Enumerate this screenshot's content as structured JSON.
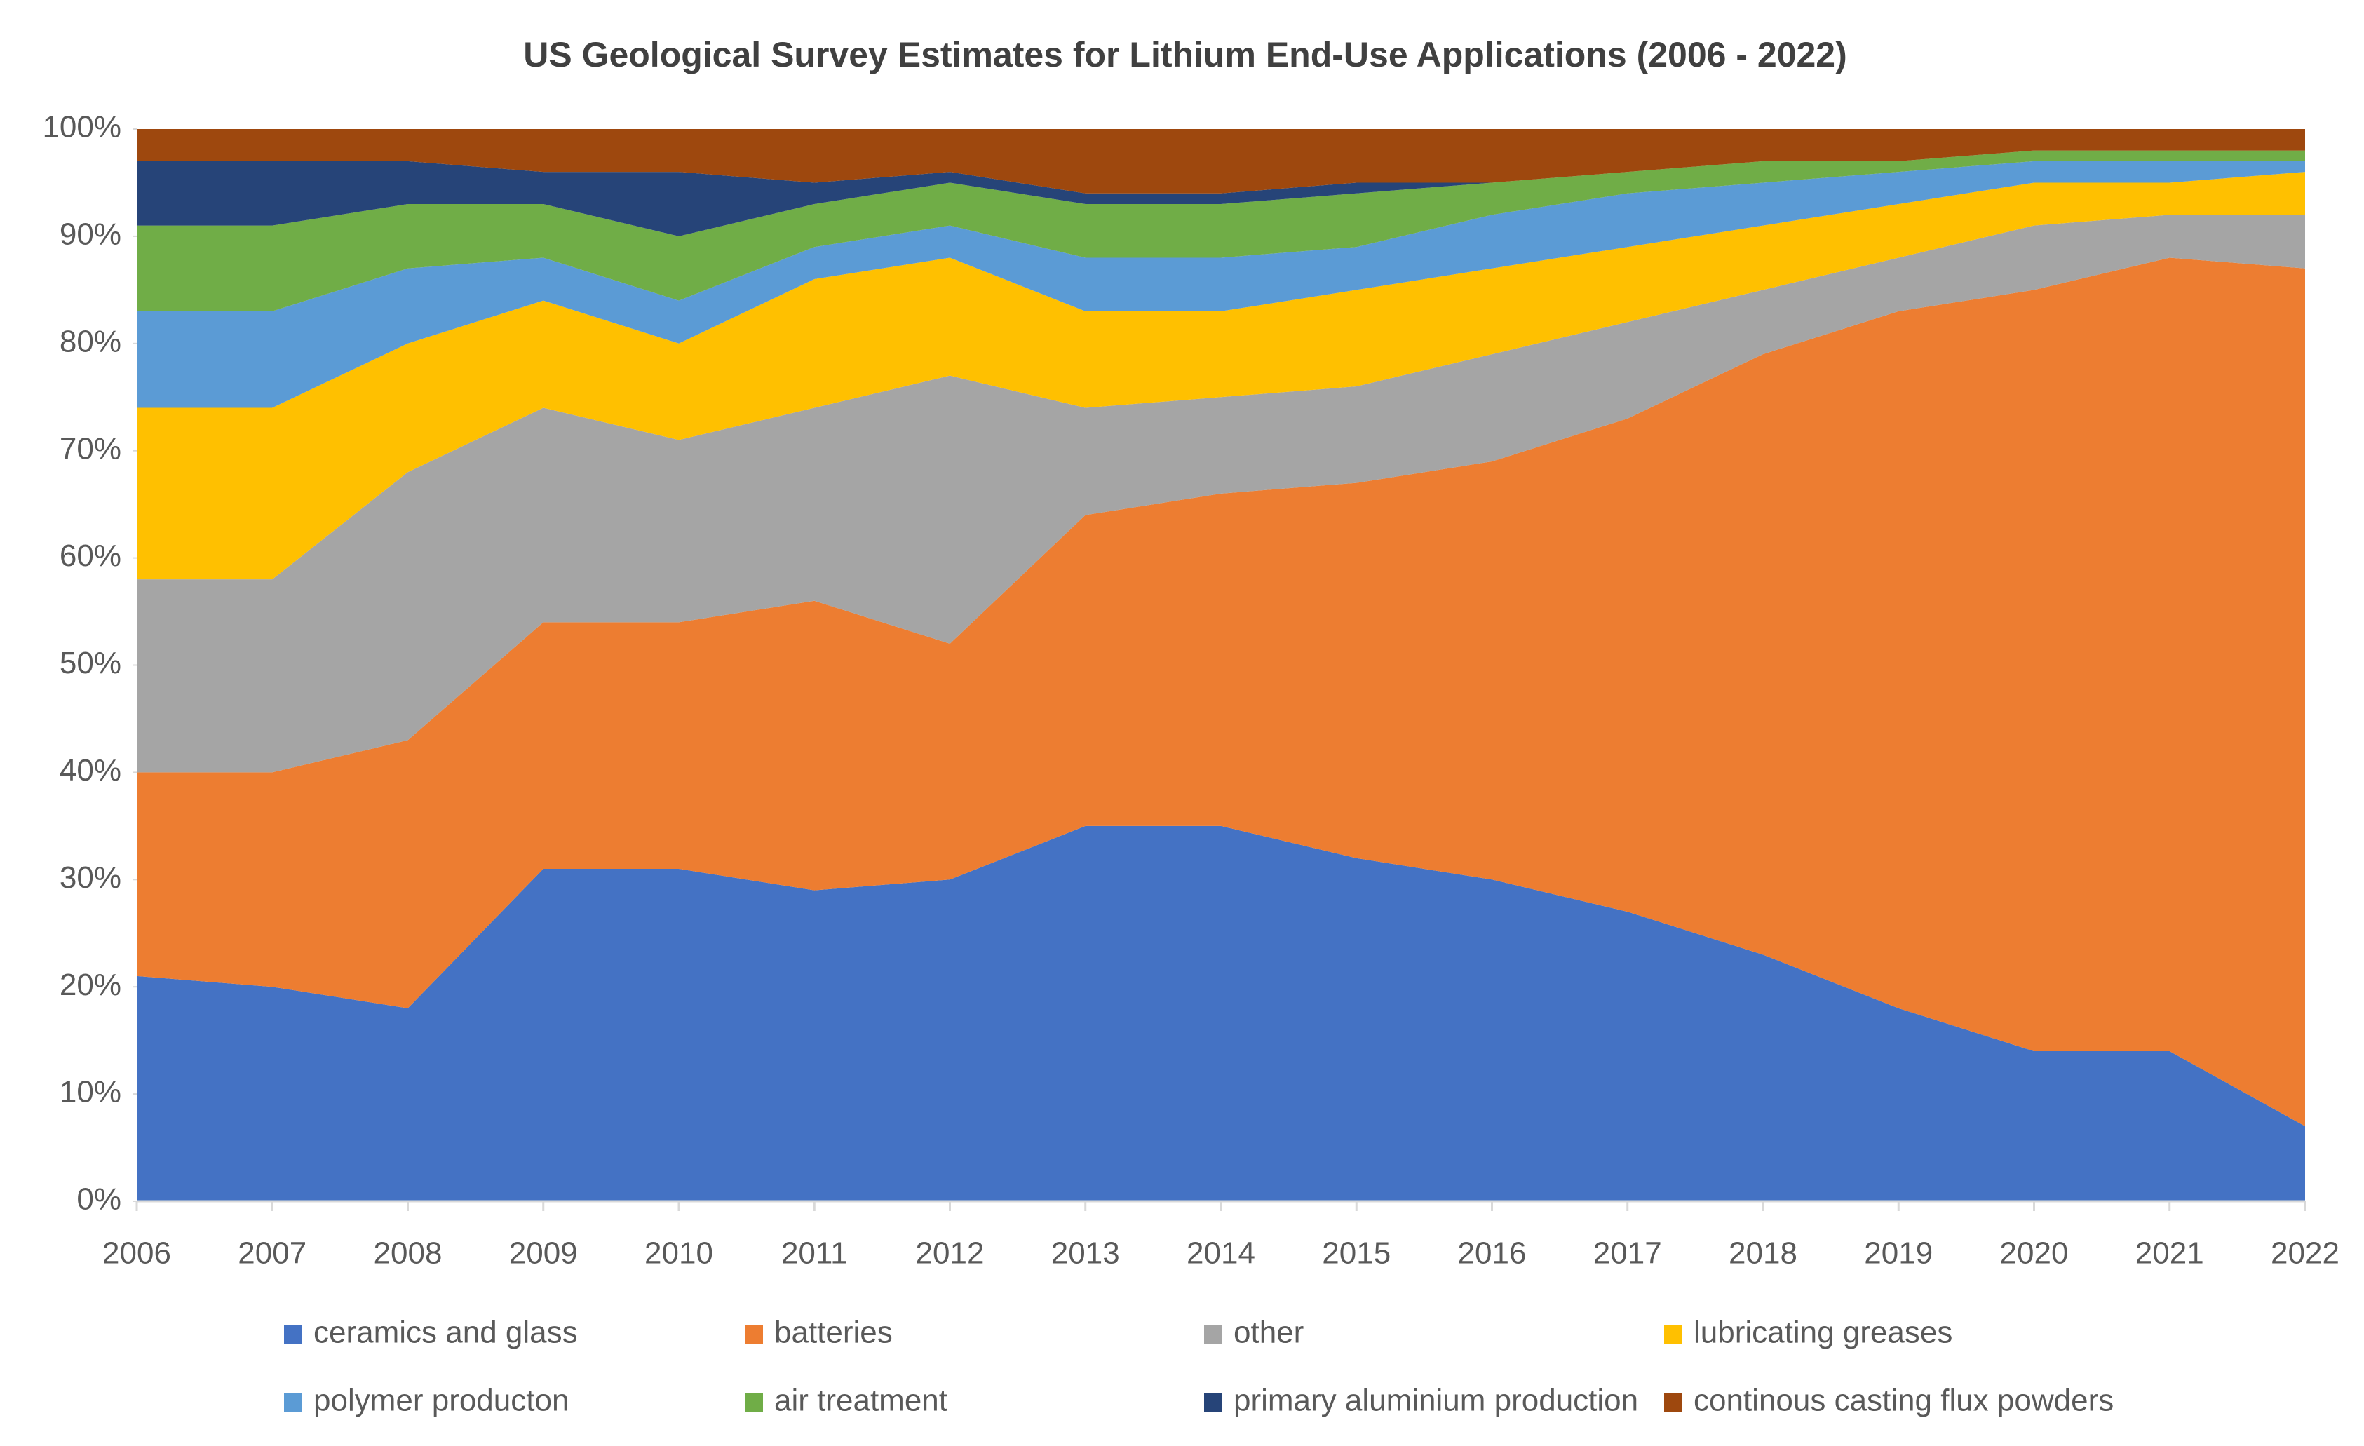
{
  "chart_data": {
    "type": "stacked_area",
    "title": "US Geological Survey Estimates for Lithium End-Use Applications (2006 - 2022)",
    "categories": [
      "2006",
      "2007",
      "2008",
      "2009",
      "2010",
      "2011",
      "2012",
      "2013",
      "2014",
      "2015",
      "2016",
      "2017",
      "2018",
      "2019",
      "2020",
      "2021",
      "2022"
    ],
    "series": [
      {
        "name": "ceramics and glass",
        "color": "#4472c4",
        "values": [
          21,
          20,
          18,
          31,
          31,
          29,
          30,
          35,
          35,
          32,
          30,
          27,
          23,
          18,
          14,
          14,
          7
        ]
      },
      {
        "name": "batteries",
        "color": "#ed7d31",
        "values": [
          19,
          20,
          25,
          23,
          23,
          27,
          22,
          29,
          31,
          35,
          39,
          46,
          56,
          65,
          71,
          74,
          80
        ]
      },
      {
        "name": "other",
        "color": "#a5a5a5",
        "values": [
          18,
          18,
          25,
          20,
          17,
          18,
          25,
          10,
          9,
          9,
          10,
          9,
          6,
          5,
          6,
          4,
          5
        ]
      },
      {
        "name": "lubricating greases",
        "color": "#ffc000",
        "values": [
          16,
          16,
          12,
          10,
          9,
          12,
          11,
          9,
          8,
          9,
          8,
          7,
          6,
          5,
          4,
          3,
          4
        ]
      },
      {
        "name": "polymer producton",
        "color": "#5b9bd5",
        "values": [
          9,
          9,
          7,
          4,
          4,
          3,
          3,
          5,
          5,
          4,
          5,
          5,
          4,
          3,
          2,
          2,
          1
        ]
      },
      {
        "name": "air treatment",
        "color": "#70ad47",
        "values": [
          8,
          8,
          6,
          5,
          6,
          4,
          4,
          5,
          5,
          5,
          3,
          2,
          2,
          1,
          1,
          1,
          1
        ]
      },
      {
        "name": "primary aluminium production",
        "color": "#264478",
        "values": [
          6,
          6,
          4,
          3,
          6,
          2,
          1,
          1,
          1,
          1,
          0,
          0,
          0,
          0,
          0,
          0,
          0
        ]
      },
      {
        "name": "continous casting flux powders",
        "color": "#9e480e",
        "values": [
          3,
          3,
          3,
          4,
          4,
          5,
          4,
          6,
          6,
          5,
          5,
          4,
          3,
          3,
          2,
          2,
          2
        ]
      }
    ],
    "ylim": [
      0,
      100
    ],
    "yticks": [
      {
        "value": 0,
        "label": "0%"
      },
      {
        "value": 10,
        "label": "10%"
      },
      {
        "value": 20,
        "label": "20%"
      },
      {
        "value": 30,
        "label": "30%"
      },
      {
        "value": 40,
        "label": "40%"
      },
      {
        "value": 50,
        "label": "50%"
      },
      {
        "value": 60,
        "label": "60%"
      },
      {
        "value": 70,
        "label": "70%"
      },
      {
        "value": 80,
        "label": "80%"
      },
      {
        "value": 90,
        "label": "90%"
      },
      {
        "value": 100,
        "label": "100%"
      }
    ],
    "legend": "bottom"
  }
}
